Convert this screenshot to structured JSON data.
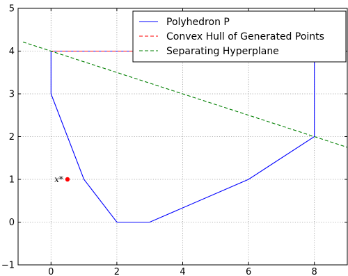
{
  "chart_data": {
    "type": "line",
    "title": "",
    "xlabel": "",
    "ylabel": "",
    "xlim": [
      -1,
      9
    ],
    "ylim": [
      -1,
      5
    ],
    "xticks": [
      0,
      2,
      4,
      6,
      8
    ],
    "yticks": [
      -1,
      0,
      1,
      2,
      3,
      4,
      5
    ],
    "x_tick_labels": [
      "0",
      "2",
      "4",
      "6",
      "8"
    ],
    "y_tick_labels": [
      "−1",
      "0",
      "1",
      "2",
      "3",
      "4",
      "5"
    ],
    "grid": true,
    "legend_position": "top-right",
    "series": [
      {
        "name": "Polyhedron P",
        "color": "#0000ff",
        "style": "solid",
        "x": [
          0,
          0,
          1,
          2,
          3,
          6,
          8,
          8,
          0
        ],
        "y": [
          4,
          3,
          1,
          0,
          0,
          1,
          2,
          4,
          4
        ]
      },
      {
        "name": "Convex Hull of Generated Points",
        "color": "#ff0000",
        "style": "dashed",
        "x": [
          0,
          8
        ],
        "y": [
          4,
          4
        ]
      },
      {
        "name": "Separating Hyperplane",
        "color": "#007f00",
        "style": "dashed",
        "x": [
          -0.85,
          9
        ],
        "y": [
          4.2125,
          1.75
        ]
      }
    ],
    "points": [
      {
        "label": "x*",
        "x": 0.5,
        "y": 1,
        "color": "#ff0000"
      }
    ],
    "annotations": [
      {
        "text": "x*",
        "x": 0.5,
        "y": 1
      }
    ]
  }
}
